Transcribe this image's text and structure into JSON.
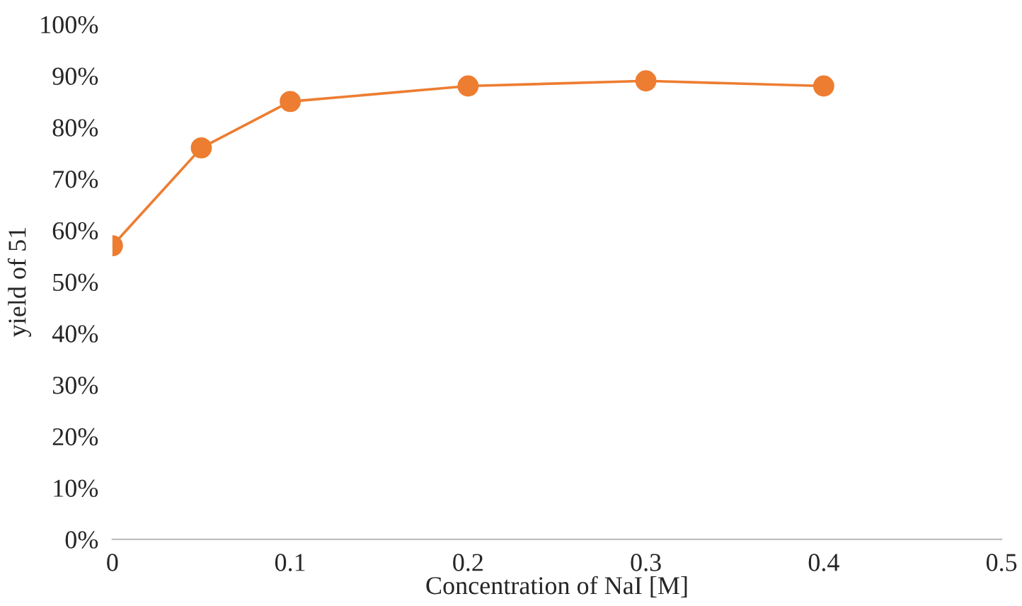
{
  "chart_data": {
    "type": "line",
    "xlabel": "Concentration of NaI [M]",
    "ylabel": "yield of 51",
    "x": [
      0,
      0.05,
      0.1,
      0.2,
      0.3,
      0.4
    ],
    "series": [
      {
        "color": "#ed7d31",
        "values": [
          57,
          76,
          85,
          88,
          89,
          88
        ]
      }
    ],
    "xlim": [
      0,
      0.5
    ],
    "xticks": [
      0,
      0.1,
      0.2,
      0.3,
      0.4,
      0.5
    ],
    "ylim": [
      0,
      100
    ],
    "yticks": [
      {
        "value": 0,
        "label": "0%"
      },
      {
        "value": 10,
        "label": "10%"
      },
      {
        "value": 20,
        "label": "20%"
      },
      {
        "value": 30,
        "label": "30%"
      },
      {
        "value": 40,
        "label": "40%"
      },
      {
        "value": 50,
        "label": "50%"
      },
      {
        "value": 60,
        "label": "60%"
      },
      {
        "value": 70,
        "label": "70%"
      },
      {
        "value": 80,
        "label": "80%"
      },
      {
        "value": 90,
        "label": "90%"
      },
      {
        "value": 100,
        "label": "100%"
      }
    ],
    "grid": false,
    "legend": false,
    "marker": "circle",
    "line_style": "solid"
  }
}
